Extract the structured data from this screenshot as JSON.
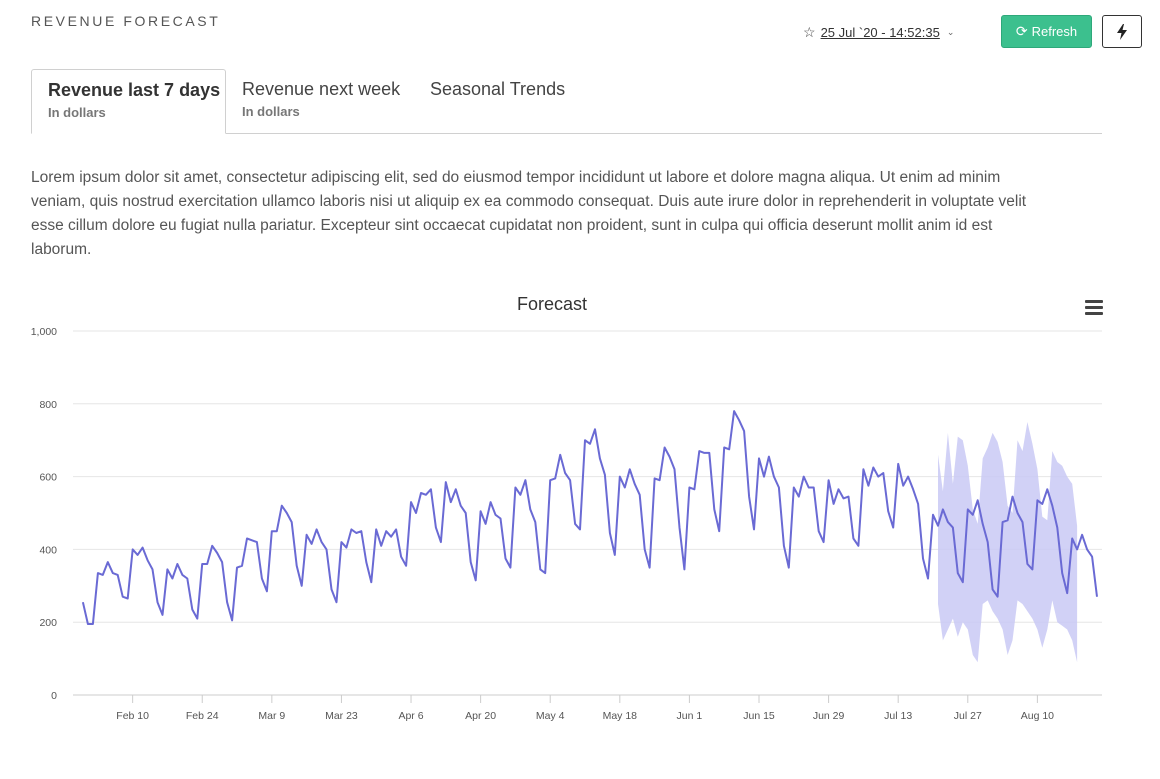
{
  "header": {
    "title": "REVENUE FORECAST",
    "date": "25 Jul `20 - 14:52:35",
    "refresh_label": "Refresh"
  },
  "icons": {
    "star": "star-icon",
    "chevron": "chevron-down-icon",
    "refresh": "refresh-icon",
    "bolt": "bolt-icon",
    "menu": "hamburger-menu-icon"
  },
  "colors": {
    "accent": "#3cc08e",
    "series": "#6a6ad4",
    "band": "#c9c9f4",
    "grid": "#e6e6e6"
  },
  "tabs": [
    {
      "label": "Revenue last 7 days",
      "sub": "In dollars"
    },
    {
      "label": "Revenue next week",
      "sub": "In dollars"
    },
    {
      "label": "Seasonal Trends",
      "sub": ""
    }
  ],
  "description": "Lorem ipsum dolor sit amet, consectetur adipiscing elit, sed do eiusmod tempor incididunt ut labore et dolore magna aliqua. Ut enim ad minim veniam, quis nostrud exercitation ullamco laboris nisi ut aliquip ex ea commodo consequat. Duis aute irure dolor in reprehenderit in voluptate velit esse cillum dolore eu fugiat nulla pariatur. Excepteur sint occaecat cupidatat non proident, sunt in culpa qui officia deserunt mollit anim id est laborum.",
  "chart_data": {
    "type": "line",
    "title": "Forecast",
    "xlabel": "",
    "ylabel": "",
    "ylim": [
      0,
      1000
    ],
    "yticks": [
      0,
      200,
      400,
      600,
      800,
      1000
    ],
    "ytick_labels": [
      "0",
      "200",
      "400",
      "600",
      "800",
      "1,000"
    ],
    "xlim": [
      "2020-01-29",
      "2020-08-23"
    ],
    "xticks": [
      "2020-02-10",
      "2020-02-24",
      "2020-03-09",
      "2020-03-23",
      "2020-04-06",
      "2020-04-20",
      "2020-05-04",
      "2020-05-18",
      "2020-06-01",
      "2020-06-15",
      "2020-06-29",
      "2020-07-13",
      "2020-07-27",
      "2020-08-10"
    ],
    "xtick_labels": [
      "Feb 10",
      "Feb 24",
      "Mar 9",
      "Mar 23",
      "Apr 6",
      "Apr 20",
      "May 4",
      "May 18",
      "Jun 1",
      "Jun 15",
      "Jun 29",
      "Jul 13",
      "Jul 27",
      "Aug 10"
    ],
    "grid": true,
    "legend": "none",
    "start_date": "2020-01-31",
    "series": [
      {
        "values": [
          255,
          195,
          195,
          335,
          330,
          365,
          335,
          330,
          270,
          265,
          400,
          385,
          405,
          370,
          345,
          255,
          220,
          345,
          320,
          360,
          330,
          320,
          235,
          210,
          360,
          360,
          410,
          390,
          365,
          255,
          205,
          350,
          355,
          430,
          425,
          420,
          320,
          285,
          450,
          450,
          520,
          500,
          475,
          355,
          300,
          440,
          415,
          455,
          420,
          400,
          290,
          255,
          420,
          405,
          455,
          445,
          450,
          365,
          310,
          455,
          410,
          450,
          435,
          455,
          380,
          355,
          530,
          500,
          555,
          550,
          565,
          460,
          420,
          585,
          530,
          565,
          520,
          500,
          365,
          315,
          505,
          470,
          530,
          495,
          485,
          375,
          350,
          570,
          550,
          590,
          510,
          475,
          345,
          335,
          590,
          595,
          660,
          610,
          590,
          470,
          455,
          700,
          690,
          730,
          650,
          605,
          445,
          385,
          600,
          570,
          620,
          580,
          550,
          400,
          350,
          595,
          590,
          680,
          655,
          620,
          460,
          345,
          570,
          565,
          670,
          665,
          665,
          510,
          450,
          680,
          675,
          780,
          755,
          725,
          545,
          455,
          650,
          600,
          655,
          600,
          570,
          410,
          350,
          570,
          545,
          600,
          570,
          570,
          450,
          420,
          590,
          525,
          565,
          540,
          545,
          430,
          410,
          620,
          575,
          625,
          600,
          610,
          505,
          460,
          635,
          575,
          600,
          565,
          525,
          375,
          320,
          495,
          465,
          510,
          475,
          460,
          335,
          310,
          510,
          495,
          535,
          470,
          420,
          290,
          270,
          475,
          480,
          545,
          500,
          475,
          360,
          345,
          535,
          525,
          565,
          520,
          460,
          335,
          280,
          430,
          400,
          440,
          400,
          380,
          270
        ]
      }
    ],
    "forecast_band": {
      "start_index": 172,
      "upper": [
        660,
        560,
        720,
        580,
        710,
        700,
        630,
        510,
        470,
        650,
        680,
        720,
        695,
        640,
        520,
        500,
        700,
        670,
        750,
        690,
        620,
        490,
        480,
        670,
        640,
        630,
        600,
        580,
        465
      ],
      "lower": [
        250,
        150,
        180,
        210,
        160,
        200,
        180,
        110,
        90,
        250,
        260,
        230,
        210,
        180,
        110,
        150,
        260,
        250,
        230,
        210,
        180,
        130,
        180,
        260,
        200,
        190,
        180,
        150,
        90
      ]
    }
  }
}
